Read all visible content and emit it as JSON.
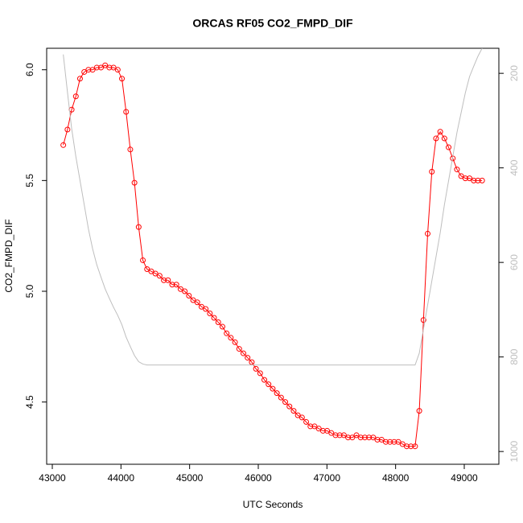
{
  "chart_data": {
    "type": "line",
    "title": "ORCAS RF05 CO2_FMPD_DIF",
    "x_label": "UTC Seconds",
    "y_label": "CO2_FMPD_DIF",
    "x": [
      43160,
      43221,
      43282,
      43343,
      43404,
      43465,
      43526,
      43587,
      43648,
      43709,
      43770,
      43831,
      43892,
      43953,
      44014,
      44075,
      44136,
      44197,
      44258,
      44319,
      44380,
      44441,
      44502,
      44563,
      44624,
      44685,
      44746,
      44807,
      44868,
      44929,
      44990,
      45051,
      45112,
      45173,
      45234,
      45295,
      45356,
      45417,
      45478,
      45539,
      45600,
      45661,
      45722,
      45783,
      45844,
      45905,
      45966,
      46027,
      46088,
      46149,
      46210,
      46271,
      46332,
      46393,
      46454,
      46515,
      46576,
      46637,
      46698,
      46759,
      46820,
      46881,
      46942,
      47003,
      47064,
      47125,
      47186,
      47247,
      47308,
      47369,
      47430,
      47491,
      47552,
      47613,
      47674,
      47735,
      47796,
      47857,
      47918,
      47979,
      48040,
      48101,
      48162,
      48223,
      48284,
      48345,
      48406,
      48467,
      48528,
      48589,
      48650,
      48711,
      48772,
      48833,
      48894,
      48955,
      49016,
      49077,
      49138,
      49199,
      49260
    ],
    "series": [
      {
        "color": "#ff0000",
        "marker": "circle",
        "values": [
          5.66,
          5.73,
          5.82,
          5.88,
          5.96,
          5.99,
          6.0,
          6.0,
          6.01,
          6.01,
          6.02,
          6.01,
          6.01,
          6.0,
          5.96,
          5.81,
          5.64,
          5.49,
          5.29,
          5.14,
          5.1,
          5.09,
          5.08,
          5.07,
          5.05,
          5.05,
          5.03,
          5.03,
          5.01,
          5.0,
          4.98,
          4.96,
          4.95,
          4.93,
          4.92,
          4.9,
          4.88,
          4.86,
          4.84,
          4.81,
          4.79,
          4.77,
          4.74,
          4.72,
          4.7,
          4.68,
          4.65,
          4.63,
          4.6,
          4.58,
          4.56,
          4.54,
          4.52,
          4.5,
          4.48,
          4.46,
          4.44,
          4.43,
          4.41,
          4.39,
          4.39,
          4.38,
          4.37,
          4.37,
          4.36,
          4.35,
          4.35,
          4.35,
          4.34,
          4.34,
          4.35,
          4.34,
          4.34,
          4.34,
          4.34,
          4.33,
          4.33,
          4.32,
          4.32,
          4.32,
          4.32,
          4.31,
          4.3,
          4.3,
          4.3,
          4.46,
          4.87,
          5.26,
          5.54,
          5.69,
          5.72,
          5.69,
          5.65,
          5.6,
          5.55,
          5.52,
          5.51,
          5.51,
          5.5,
          5.5,
          5.5
        ]
      },
      {
        "color": "#bebebe",
        "axis": "y2",
        "values": [
          160,
          240,
          317,
          376,
          427,
          478,
          529,
          571,
          605,
          631,
          656,
          676,
          695,
          712,
          732,
          758,
          778,
          797,
          810,
          815,
          817,
          817,
          817,
          817,
          817,
          817,
          817,
          817,
          817,
          817,
          817,
          817,
          817,
          817,
          817,
          817,
          817,
          817,
          817,
          817,
          817,
          817,
          817,
          817,
          817,
          817,
          817,
          817,
          817,
          817,
          817,
          817,
          817,
          817,
          817,
          817,
          817,
          817,
          817,
          817,
          817,
          817,
          817,
          817,
          817,
          817,
          817,
          817,
          817,
          817,
          817,
          817,
          817,
          817,
          817,
          817,
          817,
          817,
          817,
          817,
          817,
          817,
          817,
          817,
          817,
          792,
          741,
          690,
          639,
          588,
          537,
          478,
          427,
          376,
          325,
          283,
          241,
          207,
          185,
          164,
          147
        ]
      }
    ],
    "xlim": [
      42918,
      49504
    ],
    "xticks": [
      43000,
      44000,
      45000,
      46000,
      47000,
      48000,
      49000
    ],
    "ylim": [
      4.219,
      6.097
    ],
    "yticks": [
      4.5,
      {
        "value": 5,
        "label": "5.0"
      },
      5.5,
      {
        "value": 6,
        "label": "6.0"
      }
    ],
    "y2lim": [
      1027,
      147
    ],
    "y2ticks": [
      200,
      400,
      600,
      800,
      1000
    ],
    "y2_tick_color": "#bebebe"
  }
}
